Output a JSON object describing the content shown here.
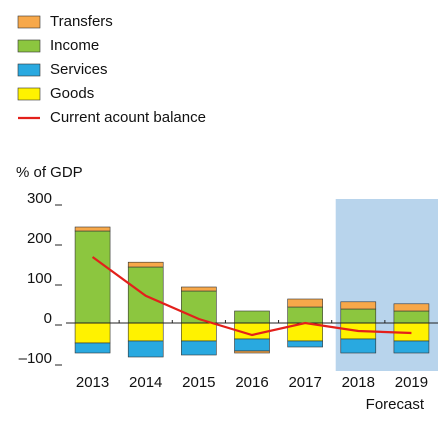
{
  "chart_data": {
    "type": "bar",
    "y_label": "% of GDP",
    "categories": [
      "2013",
      "2014",
      "2015",
      "2016",
      "2017",
      "2018",
      "2019"
    ],
    "series": [
      {
        "name": "Transfers",
        "color": "#f7a84a",
        "values": [
          10,
          12,
          10,
          -5,
          20,
          18,
          18
        ]
      },
      {
        "name": "Income",
        "color": "#8cc63f",
        "values": [
          230,
          140,
          80,
          30,
          40,
          35,
          30
        ]
      },
      {
        "name": "Services",
        "color": "#29a9e0",
        "values": [
          -25,
          -40,
          -35,
          -30,
          -15,
          -35,
          -30
        ]
      },
      {
        "name": "Goods",
        "color": "#fff200",
        "values": [
          -50,
          -45,
          -45,
          -40,
          -45,
          -40,
          -45
        ]
      },
      {
        "name": "Current acount balance",
        "type": "line",
        "color": "#e3201b",
        "values": [
          165,
          68,
          10,
          -30,
          0,
          -20,
          -25
        ]
      }
    ],
    "ylim": [
      -120,
      310
    ],
    "yticks": [
      {
        "value": -100,
        "label": "–100"
      },
      0,
      100,
      200,
      300
    ],
    "forecast_label": "Forecast",
    "forecast_from": "2018",
    "forecast_color": "#b8d4ec"
  }
}
